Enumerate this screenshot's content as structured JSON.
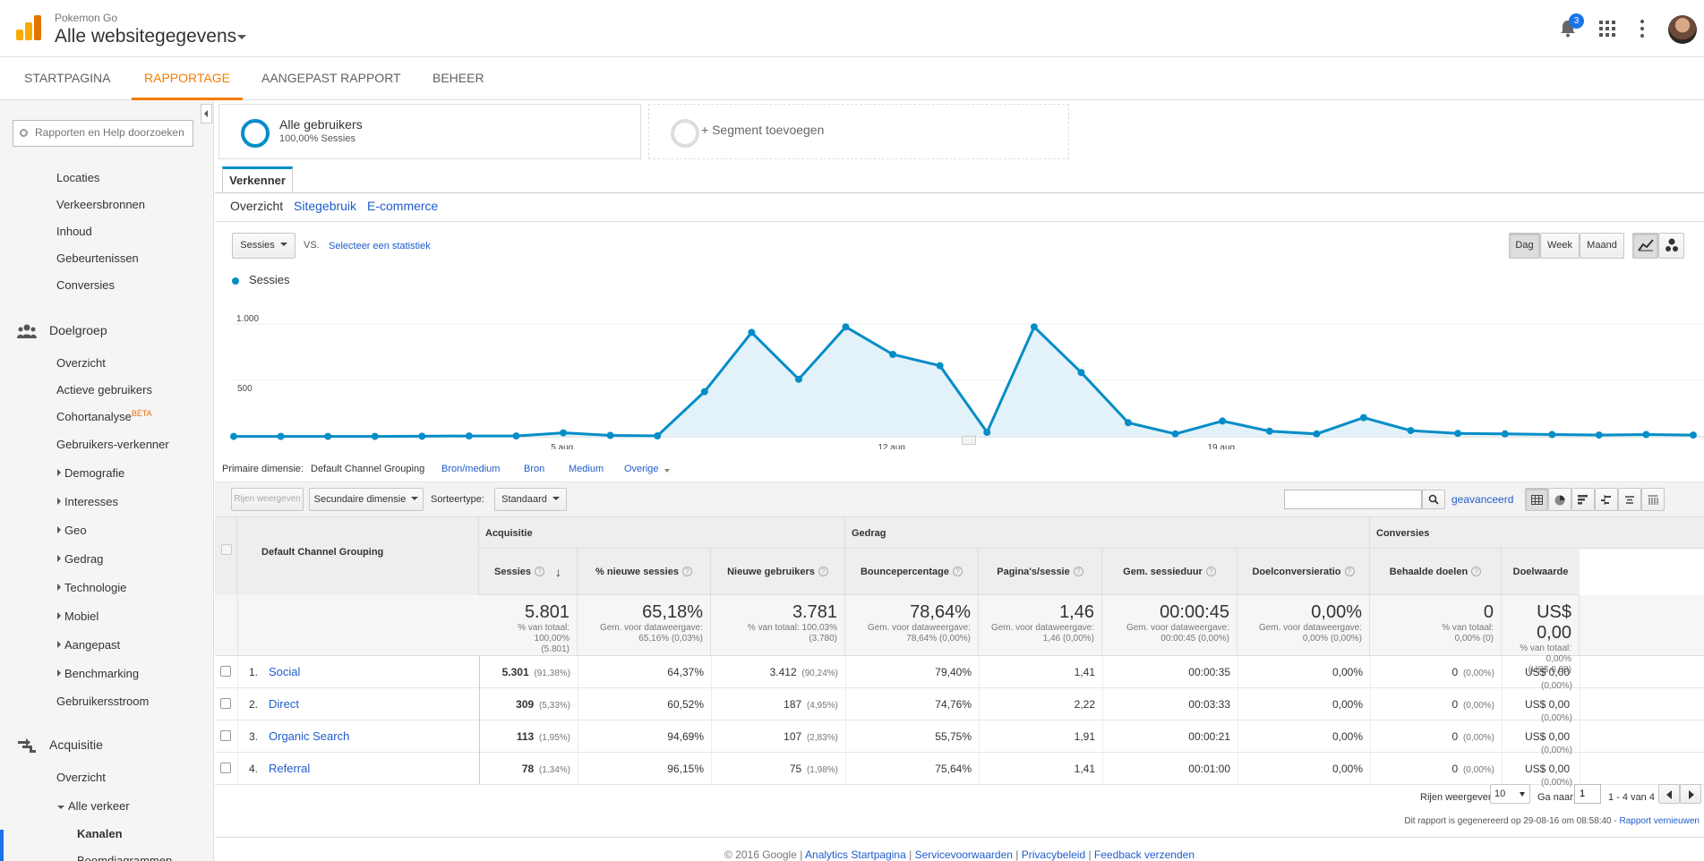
{
  "header": {
    "account": "Pokemon Go",
    "property": "Alle websitegegevens",
    "notification_count": "3"
  },
  "tabs": [
    "STARTPAGINA",
    "RAPPORTAGE",
    "AANGEPAST RAPPORT",
    "BEHEER"
  ],
  "sidebar": {
    "search_placeholder": "Rapporten en Help doorzoeken",
    "top_items": [
      "Locaties",
      "Verkeersbronnen",
      "Inhoud",
      "Gebeurtenissen",
      "Conversies"
    ],
    "doelgroep": {
      "title": "Doelgroep",
      "items": [
        "Overzicht",
        "Actieve gebruikers",
        "Cohortanalyse",
        "Gebruikers-verkenner",
        "Demografie",
        "Interesses",
        "Geo",
        "Gedrag",
        "Technologie",
        "Mobiel",
        "Aangepast",
        "Benchmarking",
        "Gebruikersstroom"
      ],
      "beta": "BÈTA"
    },
    "acquisitie": {
      "title": "Acquisitie",
      "items": [
        "Overzicht",
        "Alle verkeer",
        "Kanalen",
        "Boomdiagrammen"
      ]
    }
  },
  "segments": {
    "all_users": "Alle gebruikers",
    "all_users_sub": "100,00% Sessies",
    "add": "+ Segment toevoegen"
  },
  "explorer": {
    "tab": "Verkenner",
    "subtabs": [
      "Overzicht",
      "Sitegebruik",
      "E-commerce"
    ],
    "metric_select": "Sessies",
    "vs": "VS.",
    "select_metric": "Selecteer een statistiek",
    "period_buttons": [
      "Dag",
      "Week",
      "Maand"
    ],
    "legend": "Sessies"
  },
  "chart_data": {
    "type": "area",
    "series": [
      {
        "name": "Sessies",
        "values": [
          3,
          3,
          3,
          3,
          5,
          7,
          7,
          35,
          12,
          8,
          400,
          925,
          510,
          975,
          730,
          630,
          40,
          975,
          570,
          125,
          25,
          140,
          50,
          25,
          170,
          55,
          30,
          25,
          20,
          15,
          20,
          15
        ]
      }
    ],
    "x_tick_labels": [
      "...",
      "5 aug.",
      "12 aug.",
      "19 aug."
    ],
    "y_tick_labels": [
      "1.000",
      "500"
    ],
    "ylim": [
      0,
      1000
    ],
    "color": "#058dc7"
  },
  "dimensions": {
    "label": "Primaire dimensie:",
    "active": "Default Channel Grouping",
    "others": [
      "Bron/medium",
      "Bron",
      "Medium",
      "Overige"
    ]
  },
  "toolbar": {
    "rows_btn": "Rijen weergeven",
    "secondary": "Secundaire dimensie",
    "sort_label": "Sorteertype:",
    "sort_value": "Standaard",
    "advanced": "geavanceerd"
  },
  "table": {
    "dim_header": "Default Channel Grouping",
    "groups": [
      "Acquisitie",
      "Gedrag",
      "Conversies"
    ],
    "columns": [
      "Sessies",
      "% nieuwe sessies",
      "Nieuwe gebruikers",
      "Bouncepercentage",
      "Pagina's/sessie",
      "Gem. sessieduur",
      "Doelconversieratio",
      "Behaalde doelen",
      "Doelwaarde"
    ],
    "totals": [
      {
        "value": "5.801",
        "sub1": "% van totaal: 100,00%",
        "sub2": "(5.801)"
      },
      {
        "value": "65,18%",
        "sub1": "Gem. voor dataweergave:",
        "sub2": "65,16% (0,03%)"
      },
      {
        "value": "3.781",
        "sub1": "% van totaal: 100,03%",
        "sub2": "(3.780)"
      },
      {
        "value": "78,64%",
        "sub1": "Gem. voor dataweergave:",
        "sub2": "78,64% (0,00%)"
      },
      {
        "value": "1,46",
        "sub1": "Gem. voor dataweergave:",
        "sub2": "1,46 (0,00%)"
      },
      {
        "value": "00:00:45",
        "sub1": "Gem. voor dataweergave:",
        "sub2": "00:00:45 (0,00%)"
      },
      {
        "value": "0,00%",
        "sub1": "Gem. voor dataweergave:",
        "sub2": "0,00% (0,00%)"
      },
      {
        "value": "0",
        "sub1": "% van totaal:",
        "sub2": "0,00% (0)"
      },
      {
        "value": "US$ 0,00",
        "sub1": "% van totaal: 0,00%",
        "sub2": "(US$ 0,00)"
      }
    ],
    "rows": [
      {
        "idx": "1.",
        "name": "Social",
        "sessions": "5.301",
        "sessions_pct": "(91,38%)",
        "new_sess": "64,37%",
        "new_users": "3.412",
        "new_users_pct": "(90,24%)",
        "bounce": "79,40%",
        "pps": "1,41",
        "dur": "00:00:35",
        "conv": "0,00%",
        "goals": "0",
        "goals_pct": "(0,00%)",
        "value": "US$ 0,00",
        "value_pct": "(0,00%)"
      },
      {
        "idx": "2.",
        "name": "Direct",
        "sessions": "309",
        "sessions_pct": "(5,33%)",
        "new_sess": "60,52%",
        "new_users": "187",
        "new_users_pct": "(4,95%)",
        "bounce": "74,76%",
        "pps": "2,22",
        "dur": "00:03:33",
        "conv": "0,00%",
        "goals": "0",
        "goals_pct": "(0,00%)",
        "value": "US$ 0,00",
        "value_pct": "(0,00%)"
      },
      {
        "idx": "3.",
        "name": "Organic Search",
        "sessions": "113",
        "sessions_pct": "(1,95%)",
        "new_sess": "94,69%",
        "new_users": "107",
        "new_users_pct": "(2,83%)",
        "bounce": "55,75%",
        "pps": "1,91",
        "dur": "00:00:21",
        "conv": "0,00%",
        "goals": "0",
        "goals_pct": "(0,00%)",
        "value": "US$ 0,00",
        "value_pct": "(0,00%)"
      },
      {
        "idx": "4.",
        "name": "Referral",
        "sessions": "78",
        "sessions_pct": "(1,34%)",
        "new_sess": "96,15%",
        "new_users": "75",
        "new_users_pct": "(1,98%)",
        "bounce": "75,64%",
        "pps": "1,41",
        "dur": "00:01:00",
        "conv": "0,00%",
        "goals": "0",
        "goals_pct": "(0,00%)",
        "value": "US$ 0,00",
        "value_pct": "(0,00%)"
      }
    ]
  },
  "pagination": {
    "rows_label": "Rijen weergeven:",
    "rows_value": "10",
    "goto_label": "Ga naar:",
    "goto_value": "1",
    "range": "1 - 4 van 4"
  },
  "report_note": "Dit rapport is gegenereerd op 29-08-16 om 08:58:40 -",
  "report_refresh": "Rapport vernieuwen",
  "footer": {
    "copyright": "© 2016 Google",
    "links": [
      "Analytics Startpagina",
      "Servicevoorwaarden",
      "Privacybeleid",
      "Feedback verzenden"
    ]
  }
}
